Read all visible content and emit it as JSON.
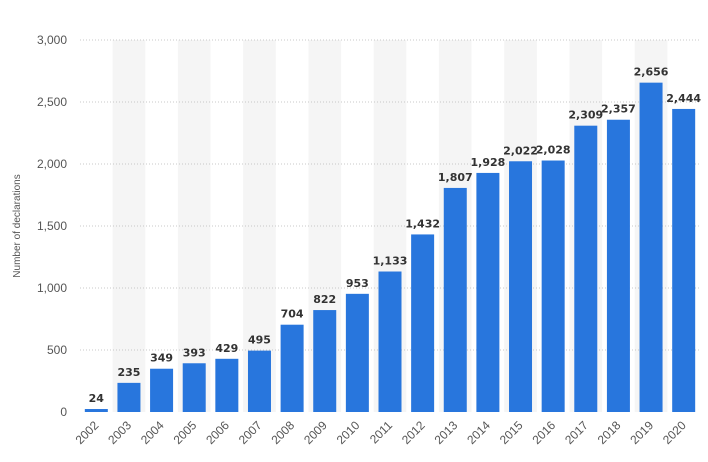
{
  "chart_data": {
    "type": "bar",
    "categories": [
      "2002",
      "2003",
      "2004",
      "2005",
      "2006",
      "2007",
      "2008",
      "2009",
      "2010",
      "2011",
      "2012",
      "2013",
      "2014",
      "2015",
      "2016",
      "2017",
      "2018",
      "2019",
      "2020"
    ],
    "values": [
      24,
      235,
      349,
      393,
      429,
      495,
      704,
      822,
      953,
      1133,
      1432,
      1807,
      1928,
      2022,
      2028,
      2309,
      2357,
      2656,
      2444
    ],
    "data_labels": [
      "24",
      "235",
      "349",
      "393",
      "429",
      "495",
      "704",
      "822",
      "953",
      "1,133",
      "1,432",
      "1,807",
      "1,928",
      "2,022",
      "2,028",
      "2,309",
      "2,357",
      "2,656",
      "2,444"
    ],
    "ylabel": "Number of declarations",
    "xlabel": "",
    "ylim": [
      0,
      3000
    ],
    "yticks": [
      0,
      500,
      1000,
      1500,
      2000,
      2500,
      3000
    ],
    "ytick_labels": [
      "0",
      "500",
      "1,000",
      "1,500",
      "2,000",
      "2,500",
      "3,000"
    ],
    "grid": true,
    "bar_color": "#2876dd",
    "alt_band_color": "#f5f5f5"
  }
}
